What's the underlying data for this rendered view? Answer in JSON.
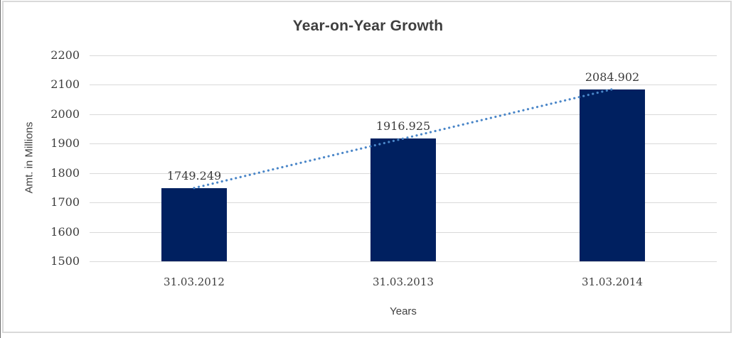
{
  "chart_data": {
    "type": "bar",
    "title": "Year-on-Year Growth",
    "xlabel": "Years",
    "ylabel": "Amt. in Millions",
    "categories": [
      "31.03.2012",
      "31.03.2013",
      "31.03.2014"
    ],
    "values": [
      1749.249,
      1916.925,
      2084.902
    ],
    "value_labels": [
      "1749.249",
      "1916.925",
      "2084.902"
    ],
    "yticks": [
      1500,
      1600,
      1700,
      1800,
      1900,
      2000,
      2100,
      2200
    ],
    "ylim": [
      1500,
      2200
    ],
    "grid": "horizontal",
    "legend_position": "none",
    "trendline": {
      "style": "dotted",
      "from_category": "31.03.2012",
      "to_category": "31.03.2014"
    }
  },
  "colors": {
    "bar_fill": "#002060",
    "trendline": "#4a86c8",
    "gridline": "#d9d9d9",
    "frame_border": "#d9d9d9",
    "page_left_edge": "#6e6e6e",
    "title_text": "#3f3f3f",
    "axis_title_text": "#404040",
    "tick_label_text": "#3d3d3d"
  }
}
